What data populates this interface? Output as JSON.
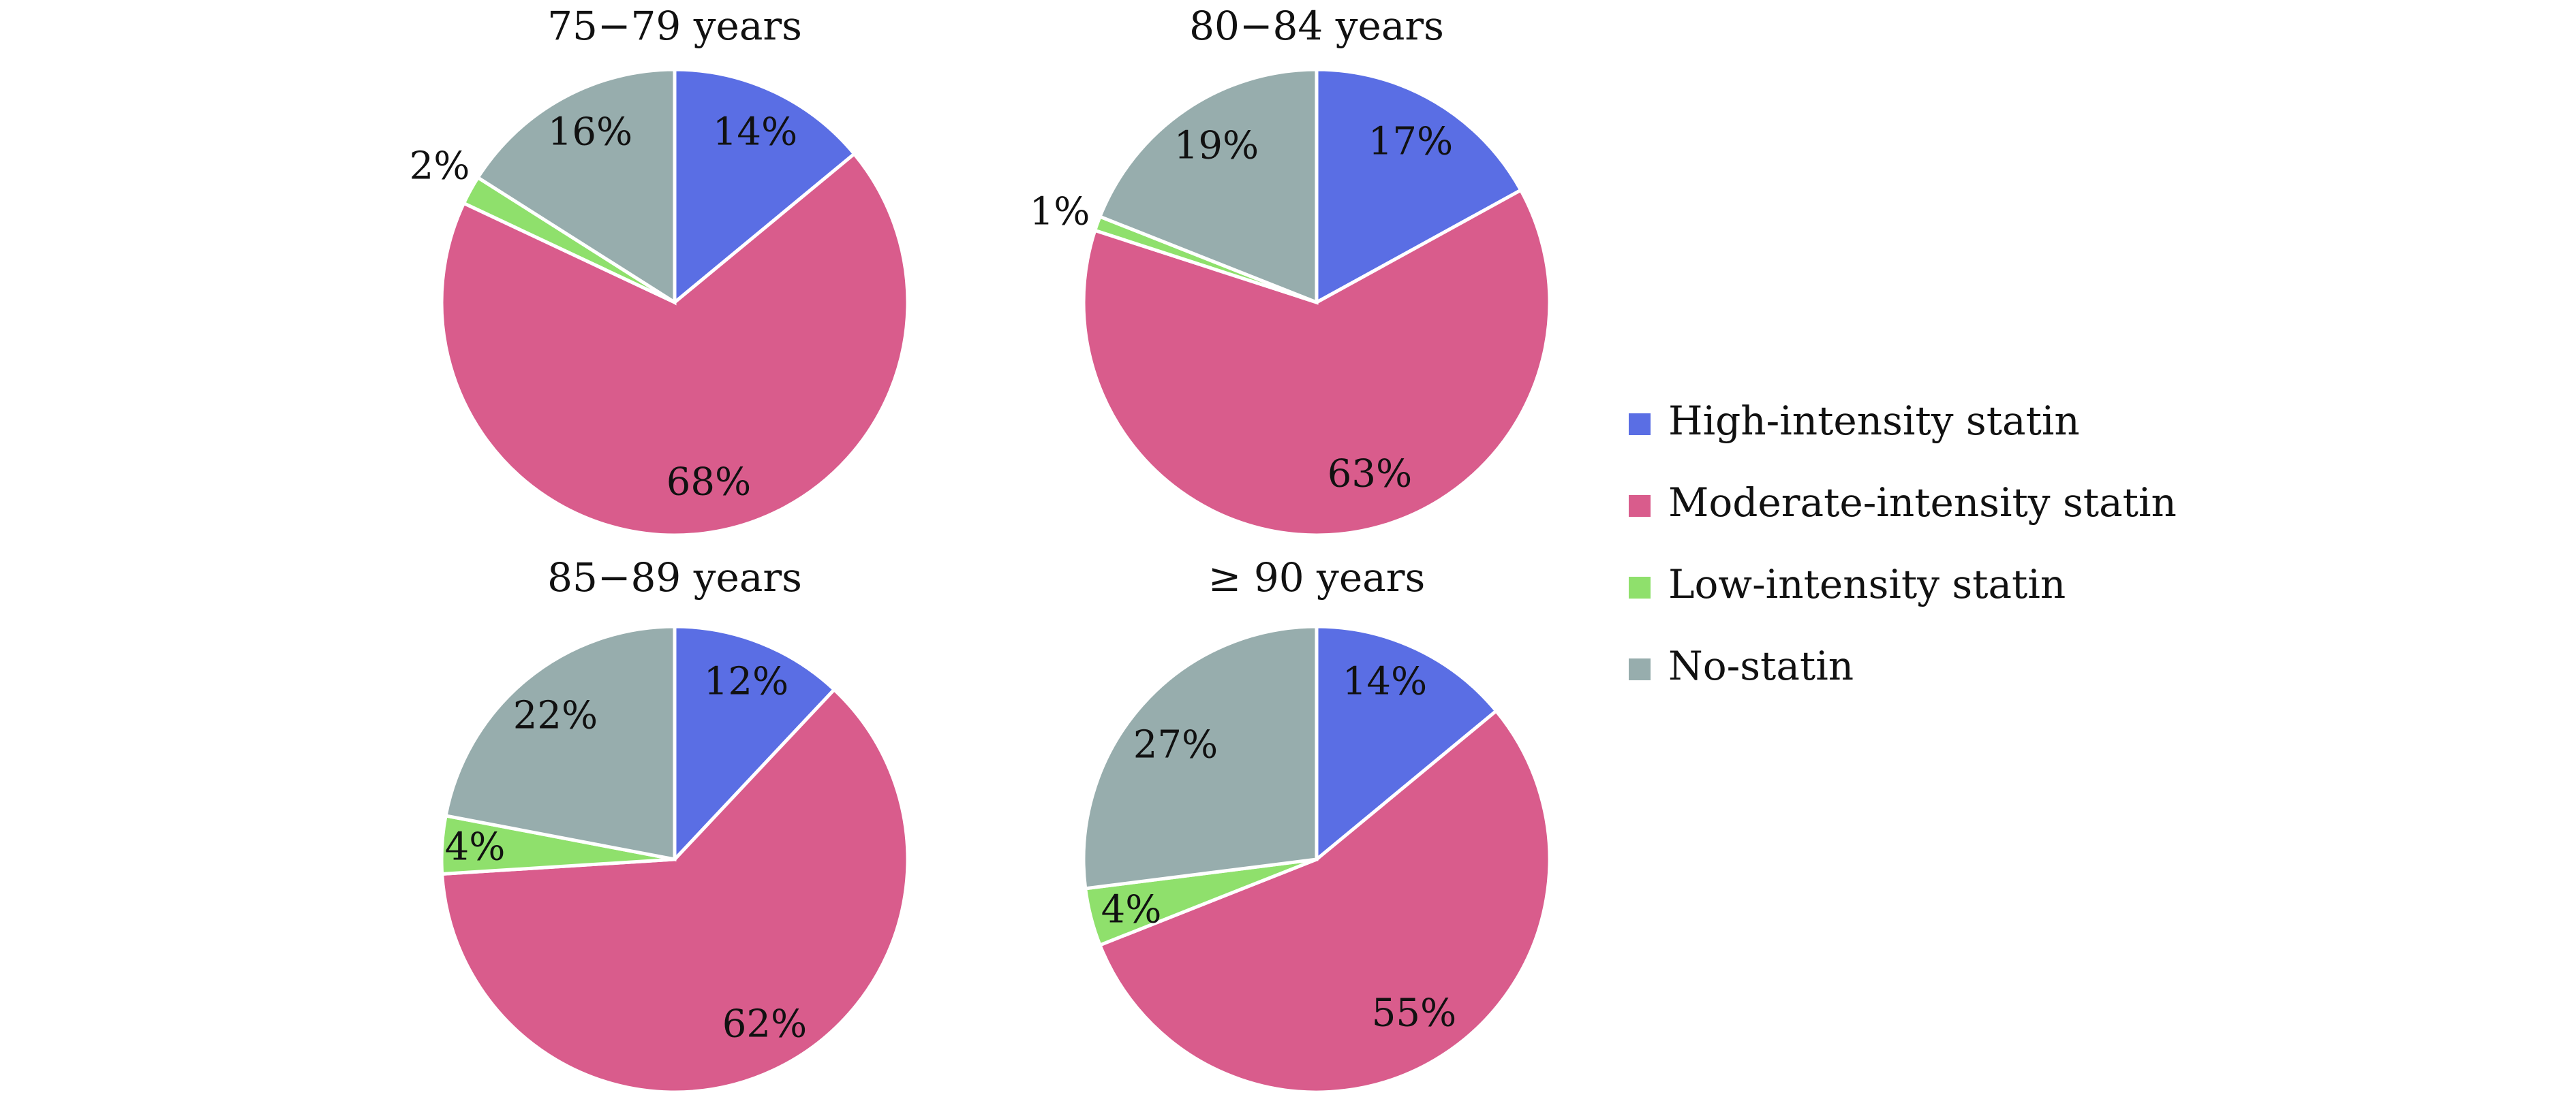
{
  "chart_data": {
    "type": "pie",
    "legend": {
      "placement": "right",
      "entries": [
        {
          "name": "High-intensity statin",
          "color": "#5a6ee4"
        },
        {
          "name": "Moderate-intensity statin",
          "color": "#d95c8c"
        },
        {
          "name": "Low-intensity statin",
          "color": "#8fe06c"
        },
        {
          "name": "No-statin",
          "color": "#97adad"
        }
      ]
    },
    "pies": [
      {
        "title": "75−79 years",
        "values": [
          14,
          68,
          2,
          16
        ],
        "labels": [
          "14%",
          "68%",
          "2%",
          "16%"
        ]
      },
      {
        "title": "80−84 years",
        "values": [
          17,
          63,
          1,
          19
        ],
        "labels": [
          "17%",
          "63%",
          "1%",
          "19%"
        ]
      },
      {
        "title": "85−89 years",
        "values": [
          12,
          62,
          4,
          22
        ],
        "labels": [
          "12%",
          "62%",
          "4%",
          "22%"
        ]
      },
      {
        "title": "≥ 90 years",
        "values": [
          14,
          55,
          4,
          27
        ],
        "labels": [
          "14%",
          "55%",
          "4%",
          "27%"
        ]
      }
    ]
  }
}
